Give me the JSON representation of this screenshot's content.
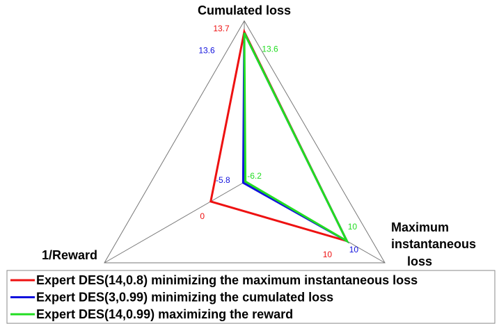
{
  "chart_data": {
    "type": "radar",
    "axes": [
      {
        "label": [
          "Cumulated loss"
        ],
        "lim": [
          0,
          14.7
        ]
      },
      {
        "label": [
          "Maximum",
          "instantaneous",
          "loss"
        ],
        "lim": [
          0,
          13.7
        ]
      },
      {
        "label": [
          "1/Reward"
        ],
        "lim": [
          -6,
          19
        ]
      }
    ],
    "series": [
      {
        "name": "Expert DES(14,0.8) minimizing the maximum instantaneous loss",
        "color": "#ee1111",
        "values": [
          13.7,
          10,
          0
        ]
      },
      {
        "name": "Expert DES(3,0.99) minimizing the cumulated loss",
        "color": "#1111dd",
        "values": [
          13.6,
          10,
          -5.8
        ]
      },
      {
        "name": "Expert DES(14,0.99) maximizing the reward",
        "color": "#22dd22",
        "values": [
          13.6,
          10,
          -6.2
        ]
      }
    ]
  }
}
